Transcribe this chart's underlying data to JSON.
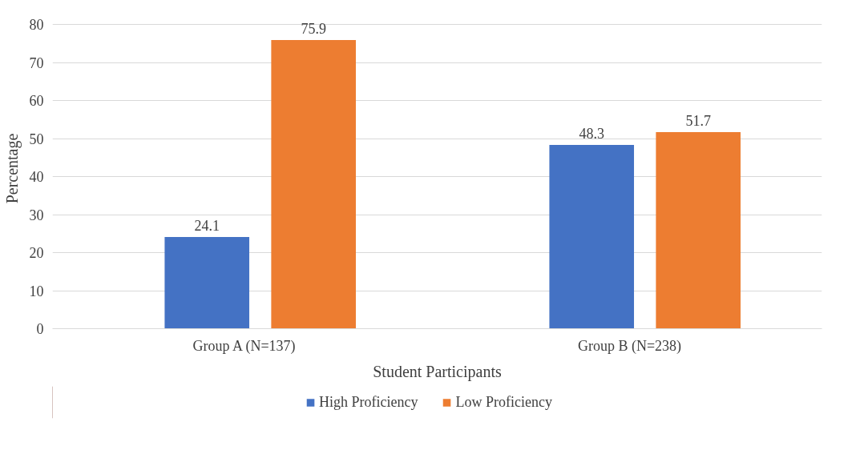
{
  "chart_data": {
    "type": "bar",
    "xlabel": "Student Participants",
    "ylabel": "Percentage",
    "categories": [
      "Group A (N=137)",
      "Group B (N=238)"
    ],
    "series": [
      {
        "name": "High Proficiency",
        "color": "#4472c4",
        "values": [
          24.1,
          48.3
        ]
      },
      {
        "name": "Low Proficiency",
        "color": "#ed7d31",
        "values": [
          75.9,
          51.7
        ]
      }
    ],
    "ylim": [
      0,
      80
    ],
    "yticks": [
      0,
      10,
      20,
      30,
      40,
      50,
      60,
      70,
      80
    ],
    "grid": "y",
    "legend": "bottom",
    "data_labels": true
  }
}
